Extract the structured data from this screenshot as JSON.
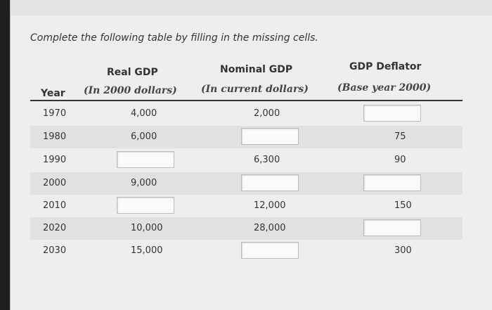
{
  "instructions": "Complete the following table by filling in the missing cells.",
  "headers": {
    "year": "Year",
    "real_gdp": "Real GDP",
    "real_gdp_sub": "(In 2000 dollars)",
    "nominal_gdp": "Nominal GDP",
    "nominal_gdp_sub": "(In current dollars)",
    "deflator": "GDP Deflator",
    "deflator_sub": "(Base year 2000)"
  },
  "rows": [
    {
      "year": "1970",
      "real": "4,000",
      "nominal": "2,000",
      "deflator": ""
    },
    {
      "year": "1980",
      "real": "6,000",
      "nominal": "",
      "deflator": "75"
    },
    {
      "year": "1990",
      "real": "",
      "nominal": "6,300",
      "deflator": "90"
    },
    {
      "year": "2000",
      "real": "9,000",
      "nominal": "",
      "deflator": ""
    },
    {
      "year": "2010",
      "real": "",
      "nominal": "12,000",
      "deflator": "150"
    },
    {
      "year": "2020",
      "real": "10,000",
      "nominal": "28,000",
      "deflator": ""
    },
    {
      "year": "2030",
      "real": "15,000",
      "nominal": "",
      "deflator": "300"
    }
  ]
}
